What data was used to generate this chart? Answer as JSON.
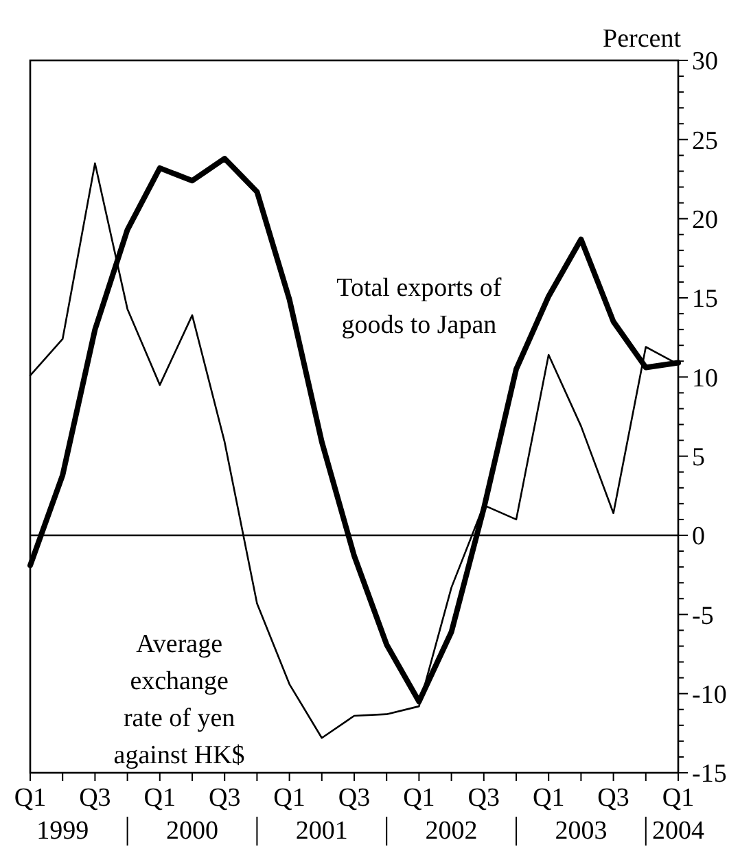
{
  "chart_data": {
    "type": "line",
    "ylabel": "Percent",
    "categories": [
      "Q1",
      null,
      "Q3",
      null,
      "Q1",
      null,
      "Q3",
      null,
      "Q1",
      null,
      "Q3",
      null,
      "Q1",
      null,
      "Q3",
      null,
      "Q1",
      null,
      "Q3",
      null,
      "Q1"
    ],
    "annotations": [
      "1999",
      "2000",
      "2001",
      "2002",
      "2003",
      "2004"
    ],
    "series": [
      {
        "name": "Total exports of goods to Japan",
        "color": "#000000",
        "values": [
          -1.9,
          3.8,
          13.0,
          19.3,
          23.2,
          22.4,
          23.8,
          21.7,
          14.9,
          5.9,
          -1.3,
          -6.9,
          -10.5,
          -6.1,
          1.7,
          10.5,
          15.1,
          18.7,
          13.5,
          10.6,
          10.9
        ]
      },
      {
        "name": "Average exchange rate of yen against HK$",
        "color": "#000000",
        "values": [
          10.1,
          12.4,
          23.5,
          14.3,
          9.5,
          13.9,
          5.9,
          -4.3,
          -9.4,
          -12.8,
          -11.4,
          -11.3,
          -10.8,
          -3.3,
          1.9,
          1.0,
          11.4,
          6.9,
          1.4,
          11.9,
          10.8
        ]
      }
    ],
    "ylim": [
      -15,
      30
    ],
    "yticks": [
      -15,
      {
        "value": -14,
        "label": null
      },
      {
        "value": -13,
        "label": null
      },
      {
        "value": -12,
        "label": null
      },
      {
        "value": -11,
        "label": null
      },
      -10,
      {
        "value": -9,
        "label": null
      },
      {
        "value": -8,
        "label": null
      },
      {
        "value": -7,
        "label": null
      },
      {
        "value": -6,
        "label": null
      },
      -5,
      {
        "value": -4,
        "label": null
      },
      {
        "value": -3,
        "label": null
      },
      {
        "value": -2,
        "label": null
      },
      {
        "value": -1,
        "label": null
      },
      0,
      {
        "value": 1,
        "label": null
      },
      {
        "value": 2,
        "label": null
      },
      {
        "value": 3,
        "label": null
      },
      {
        "value": 4,
        "label": null
      },
      5,
      {
        "value": 6,
        "label": null
      },
      {
        "value": 7,
        "label": null
      },
      {
        "value": 8,
        "label": null
      },
      {
        "value": 9,
        "label": null
      },
      10,
      {
        "value": 11,
        "label": null
      },
      {
        "value": 12,
        "label": null
      },
      {
        "value": 13,
        "label": null
      },
      {
        "value": 14,
        "label": null
      },
      15,
      {
        "value": 16,
        "label": null
      },
      {
        "value": 17,
        "label": null
      },
      {
        "value": 18,
        "label": null
      },
      {
        "value": 19,
        "label": null
      },
      20,
      {
        "value": 21,
        "label": null
      },
      {
        "value": 22,
        "label": null
      },
      {
        "value": 23,
        "label": null
      },
      {
        "value": 24,
        "label": null
      },
      25,
      {
        "value": 26,
        "label": null
      },
      {
        "value": 27,
        "label": null
      },
      {
        "value": 28,
        "label": null
      },
      {
        "value": 29,
        "label": null
      },
      30
    ],
    "ref_lines": [
      {
        "axis": "y",
        "value": 0,
        "color": "#000000"
      }
    ],
    "grid": false,
    "marker": "none",
    "line_style": "solid"
  }
}
